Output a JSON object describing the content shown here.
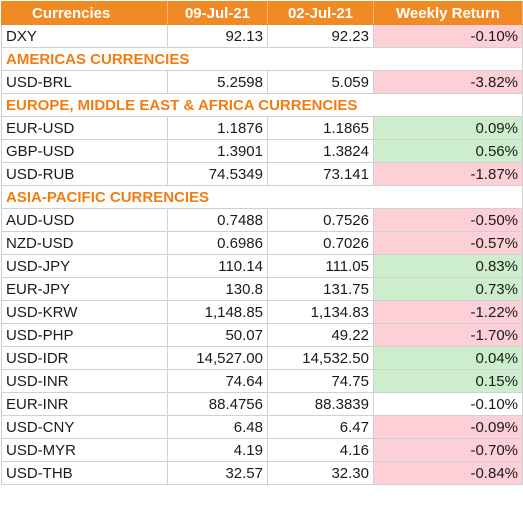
{
  "header": [
    "Currencies",
    "09-Jul-21",
    "02-Jul-21",
    "Weekly Return"
  ],
  "rows": [
    {
      "type": "data",
      "name": "DXY",
      "cur": "92.13",
      "prev": "92.23",
      "ret": "-0.10%",
      "sign": "neg"
    },
    {
      "type": "section",
      "label": "AMERICAS CURRENCIES"
    },
    {
      "type": "data",
      "name": "USD-BRL",
      "cur": "5.2598",
      "prev": "5.059",
      "ret": "-3.82%",
      "sign": "neg"
    },
    {
      "type": "section",
      "label": "EUROPE, MIDDLE EAST & AFRICA CURRENCIES"
    },
    {
      "type": "data",
      "name": "EUR-USD",
      "cur": "1.1876",
      "prev": "1.1865",
      "ret": "0.09%",
      "sign": "pos"
    },
    {
      "type": "data",
      "name": "GBP-USD",
      "cur": "1.3901",
      "prev": "1.3824",
      "ret": "0.56%",
      "sign": "pos"
    },
    {
      "type": "data",
      "name": "USD-RUB",
      "cur": "74.5349",
      "prev": "73.141",
      "ret": "-1.87%",
      "sign": "neg"
    },
    {
      "type": "section",
      "label": "ASIA-PACIFIC CURRENCIES"
    },
    {
      "type": "data",
      "name": "AUD-USD",
      "cur": "0.7488",
      "prev": "0.7526",
      "ret": "-0.50%",
      "sign": "neg"
    },
    {
      "type": "data",
      "name": "NZD-USD",
      "cur": "0.6986",
      "prev": "0.7026",
      "ret": "-0.57%",
      "sign": "neg"
    },
    {
      "type": "data",
      "name": "USD-JPY",
      "cur": "110.14",
      "prev": "111.05",
      "ret": "0.83%",
      "sign": "pos"
    },
    {
      "type": "data",
      "name": "EUR-JPY",
      "cur": "130.8",
      "prev": "131.75",
      "ret": "0.73%",
      "sign": "pos"
    },
    {
      "type": "data",
      "name": "USD-KRW",
      "cur": "1,148.85",
      "prev": "1,134.83",
      "ret": "-1.22%",
      "sign": "neg"
    },
    {
      "type": "data",
      "name": "USD-PHP",
      "cur": "50.07",
      "prev": "49.22",
      "ret": "-1.70%",
      "sign": "neg"
    },
    {
      "type": "data",
      "name": "USD-IDR",
      "cur": "14,527.00",
      "prev": "14,532.50",
      "ret": "0.04%",
      "sign": "pos"
    },
    {
      "type": "data",
      "name": "USD-INR",
      "cur": "74.64",
      "prev": "74.75",
      "ret": "0.15%",
      "sign": "pos"
    },
    {
      "type": "data",
      "name": "EUR-INR",
      "cur": "88.4756",
      "prev": "88.3839",
      "ret": "-0.10%",
      "sign": "neutral"
    },
    {
      "type": "data",
      "name": "USD-CNY",
      "cur": "6.48",
      "prev": "6.47",
      "ret": "-0.09%",
      "sign": "neg"
    },
    {
      "type": "data",
      "name": "USD-MYR",
      "cur": "4.19",
      "prev": "4.16",
      "ret": "-0.70%",
      "sign": "neg"
    },
    {
      "type": "data",
      "name": "USD-THB",
      "cur": "32.57",
      "prev": "32.30",
      "ret": "-0.84%",
      "sign": "neg"
    }
  ]
}
